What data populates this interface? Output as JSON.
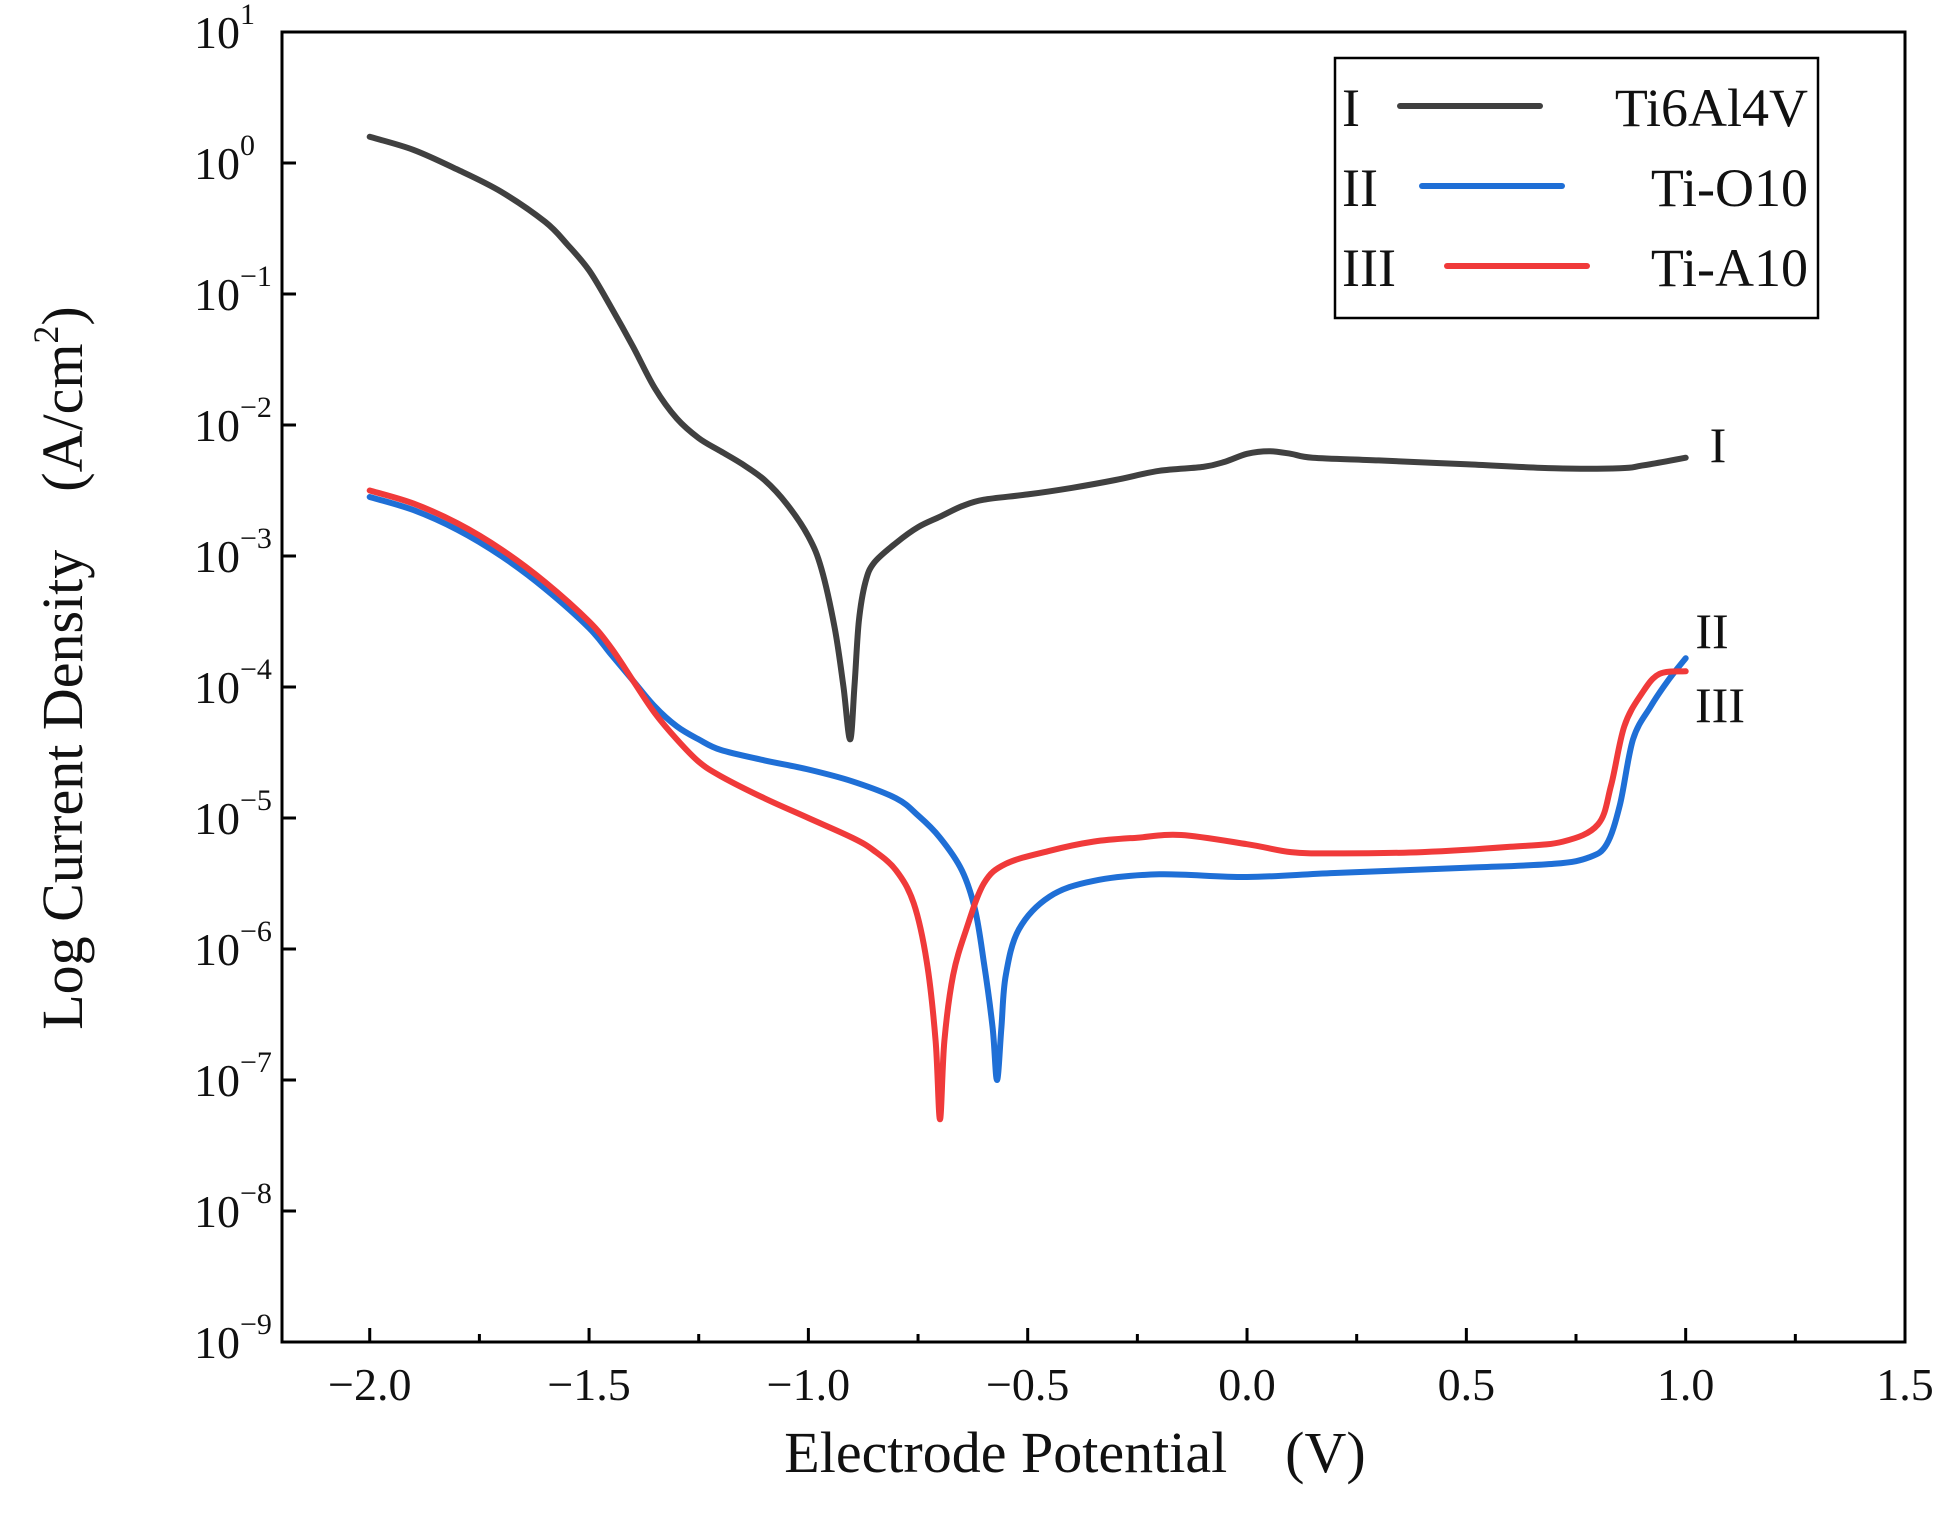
{
  "chart_data": {
    "type": "line",
    "title": "",
    "xlabel": "Electrode Potential　(V)",
    "ylabel_main": "Log Current Density　(A/cm",
    "ylabel_sup": "2",
    "ylabel_close": ")",
    "xlim": [
      -2.2,
      1.5
    ],
    "ylim_log10": [
      -9,
      1
    ],
    "y_scale": "log",
    "x_ticks": [
      -2.0,
      -1.5,
      -1.0,
      -0.5,
      0.0,
      0.5,
      1.0,
      1.5
    ],
    "x_tick_labels": [
      "−2.0",
      "−1.5",
      "−1.0",
      "−0.5",
      "0.0",
      "0.5",
      "1.0",
      "1.5"
    ],
    "y_ticks_exp": [
      1,
      0,
      -1,
      -2,
      -3,
      -4,
      -5,
      -6,
      -7,
      -8,
      -9
    ],
    "y_tick_base": "10",
    "y_tick_exp_labels": [
      "1",
      "0",
      "−1",
      "−2",
      "−3",
      "−4",
      "−5",
      "−6",
      "−7",
      "−8",
      "−9"
    ],
    "legend_position": "top-right",
    "series": [
      {
        "id": "I",
        "roman": "I",
        "name": "Ti6Al4V",
        "color": "#404040",
        "log_y": true,
        "points": [
          [
            -2.0,
            0.2
          ],
          [
            -1.9,
            0.1
          ],
          [
            -1.8,
            -0.05
          ],
          [
            -1.7,
            -0.22
          ],
          [
            -1.6,
            -0.45
          ],
          [
            -1.55,
            -0.62
          ],
          [
            -1.5,
            -0.82
          ],
          [
            -1.45,
            -1.1
          ],
          [
            -1.4,
            -1.4
          ],
          [
            -1.35,
            -1.72
          ],
          [
            -1.3,
            -1.95
          ],
          [
            -1.25,
            -2.1
          ],
          [
            -1.2,
            -2.2
          ],
          [
            -1.15,
            -2.3
          ],
          [
            -1.1,
            -2.42
          ],
          [
            -1.05,
            -2.6
          ],
          [
            -1.0,
            -2.85
          ],
          [
            -0.97,
            -3.1
          ],
          [
            -0.94,
            -3.55
          ],
          [
            -0.92,
            -4.0
          ],
          [
            -0.905,
            -4.4
          ],
          [
            -0.895,
            -4.0
          ],
          [
            -0.885,
            -3.5
          ],
          [
            -0.87,
            -3.2
          ],
          [
            -0.85,
            -3.05
          ],
          [
            -0.8,
            -2.9
          ],
          [
            -0.75,
            -2.78
          ],
          [
            -0.7,
            -2.7
          ],
          [
            -0.65,
            -2.62
          ],
          [
            -0.6,
            -2.57
          ],
          [
            -0.5,
            -2.53
          ],
          [
            -0.4,
            -2.48
          ],
          [
            -0.3,
            -2.42
          ],
          [
            -0.2,
            -2.35
          ],
          [
            -0.1,
            -2.32
          ],
          [
            -0.05,
            -2.28
          ],
          [
            0.0,
            -2.22
          ],
          [
            0.05,
            -2.2
          ],
          [
            0.1,
            -2.22
          ],
          [
            0.15,
            -2.25
          ],
          [
            0.3,
            -2.27
          ],
          [
            0.5,
            -2.3
          ],
          [
            0.7,
            -2.33
          ],
          [
            0.85,
            -2.33
          ],
          [
            0.9,
            -2.31
          ],
          [
            1.0,
            -2.25
          ]
        ]
      },
      {
        "id": "II",
        "roman": "II",
        "name": "Ti-O10",
        "color": "#1f6fd6",
        "log_y": true,
        "points": [
          [
            -2.0,
            -2.55
          ],
          [
            -1.9,
            -2.65
          ],
          [
            -1.8,
            -2.8
          ],
          [
            -1.7,
            -3.0
          ],
          [
            -1.6,
            -3.25
          ],
          [
            -1.5,
            -3.55
          ],
          [
            -1.45,
            -3.75
          ],
          [
            -1.4,
            -3.95
          ],
          [
            -1.35,
            -4.15
          ],
          [
            -1.3,
            -4.3
          ],
          [
            -1.25,
            -4.4
          ],
          [
            -1.2,
            -4.48
          ],
          [
            -1.1,
            -4.56
          ],
          [
            -1.0,
            -4.63
          ],
          [
            -0.9,
            -4.72
          ],
          [
            -0.8,
            -4.85
          ],
          [
            -0.75,
            -4.98
          ],
          [
            -0.7,
            -5.15
          ],
          [
            -0.65,
            -5.4
          ],
          [
            -0.62,
            -5.7
          ],
          [
            -0.6,
            -6.1
          ],
          [
            -0.58,
            -6.6
          ],
          [
            -0.57,
            -7.0
          ],
          [
            -0.56,
            -6.6
          ],
          [
            -0.55,
            -6.2
          ],
          [
            -0.52,
            -5.85
          ],
          [
            -0.45,
            -5.6
          ],
          [
            -0.35,
            -5.48
          ],
          [
            -0.2,
            -5.43
          ],
          [
            0.0,
            -5.45
          ],
          [
            0.2,
            -5.42
          ],
          [
            0.5,
            -5.38
          ],
          [
            0.7,
            -5.35
          ],
          [
            0.78,
            -5.3
          ],
          [
            0.82,
            -5.2
          ],
          [
            0.85,
            -4.9
          ],
          [
            0.88,
            -4.4
          ],
          [
            0.92,
            -4.15
          ],
          [
            0.96,
            -3.95
          ],
          [
            1.0,
            -3.78
          ]
        ]
      },
      {
        "id": "III",
        "roman": "III",
        "name": "Ti-A10",
        "color": "#f03a3a",
        "log_y": true,
        "points": [
          [
            -2.0,
            -2.5
          ],
          [
            -1.9,
            -2.6
          ],
          [
            -1.8,
            -2.75
          ],
          [
            -1.7,
            -2.95
          ],
          [
            -1.6,
            -3.2
          ],
          [
            -1.5,
            -3.5
          ],
          [
            -1.45,
            -3.7
          ],
          [
            -1.4,
            -3.95
          ],
          [
            -1.35,
            -4.2
          ],
          [
            -1.3,
            -4.4
          ],
          [
            -1.25,
            -4.57
          ],
          [
            -1.2,
            -4.68
          ],
          [
            -1.1,
            -4.85
          ],
          [
            -1.0,
            -5.0
          ],
          [
            -0.9,
            -5.15
          ],
          [
            -0.85,
            -5.25
          ],
          [
            -0.8,
            -5.4
          ],
          [
            -0.76,
            -5.65
          ],
          [
            -0.73,
            -6.1
          ],
          [
            -0.71,
            -6.7
          ],
          [
            -0.7,
            -7.3
          ],
          [
            -0.69,
            -6.7
          ],
          [
            -0.67,
            -6.2
          ],
          [
            -0.64,
            -5.85
          ],
          [
            -0.6,
            -5.5
          ],
          [
            -0.55,
            -5.35
          ],
          [
            -0.45,
            -5.25
          ],
          [
            -0.35,
            -5.18
          ],
          [
            -0.25,
            -5.15
          ],
          [
            -0.15,
            -5.13
          ],
          [
            0.0,
            -5.2
          ],
          [
            0.1,
            -5.26
          ],
          [
            0.2,
            -5.27
          ],
          [
            0.4,
            -5.26
          ],
          [
            0.6,
            -5.22
          ],
          [
            0.72,
            -5.18
          ],
          [
            0.8,
            -5.05
          ],
          [
            0.83,
            -4.75
          ],
          [
            0.86,
            -4.3
          ],
          [
            0.9,
            -4.05
          ],
          [
            0.94,
            -3.9
          ],
          [
            1.0,
            -3.88
          ]
        ]
      }
    ]
  }
}
